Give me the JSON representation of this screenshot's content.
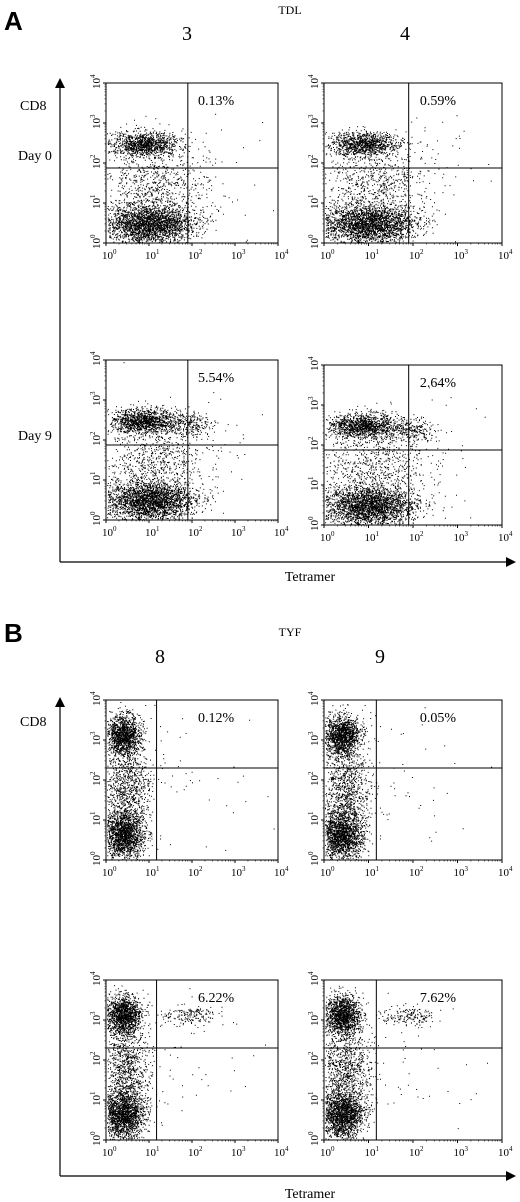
{
  "figure": {
    "panels": [
      {
        "letter": "A",
        "peptide": "TDL",
        "columns": [
          "3",
          "4"
        ],
        "y_axis_label": "CD8",
        "x_axis_label": "Tetramer",
        "row_labels": [
          "Day 0",
          "Day 9"
        ]
      },
      {
        "letter": "B",
        "peptide": "TYF",
        "columns": [
          "8",
          "9"
        ],
        "y_axis_label": "CD8",
        "x_axis_label": "Tetramer",
        "row_labels": [
          "",
          ""
        ]
      }
    ],
    "tick_labels": [
      "10",
      "0",
      "1",
      "2",
      "3",
      "4"
    ]
  },
  "chart_data": [
    {
      "type": "scatter",
      "panel": "A",
      "column": "3",
      "row": "Day 0",
      "xscale": "log",
      "yscale": "log",
      "xlim": [
        1,
        10000
      ],
      "ylim": [
        1,
        10000
      ],
      "quadrant_gate": {
        "x": 80,
        "y": 75
      },
      "tetramer_positive_percent": "0.13%"
    },
    {
      "type": "scatter",
      "panel": "A",
      "column": "4",
      "row": "Day 0",
      "xscale": "log",
      "yscale": "log",
      "xlim": [
        1,
        10000
      ],
      "ylim": [
        1,
        10000
      ],
      "quadrant_gate": {
        "x": 80,
        "y": 75
      },
      "tetramer_positive_percent": "0.59%"
    },
    {
      "type": "scatter",
      "panel": "A",
      "column": "3",
      "row": "Day 9",
      "xscale": "log",
      "yscale": "log",
      "xlim": [
        1,
        10000
      ],
      "ylim": [
        1,
        10000
      ],
      "quadrant_gate": {
        "x": 80,
        "y": 75
      },
      "tetramer_positive_percent": "5.54%"
    },
    {
      "type": "scatter",
      "panel": "A",
      "column": "4",
      "row": "Day 9",
      "xscale": "log",
      "yscale": "log",
      "xlim": [
        1,
        10000
      ],
      "ylim": [
        1,
        10000
      ],
      "quadrant_gate": {
        "x": 80,
        "y": 75
      },
      "tetramer_positive_percent": "2.64%"
    },
    {
      "type": "scatter",
      "panel": "B",
      "column": "8",
      "row": 1,
      "xscale": "log",
      "yscale": "log",
      "xlim": [
        1,
        10000
      ],
      "ylim": [
        1,
        10000
      ],
      "quadrant_gate": {
        "x": 15,
        "y": 200
      },
      "tetramer_positive_percent": "0.12%"
    },
    {
      "type": "scatter",
      "panel": "B",
      "column": "9",
      "row": 1,
      "xscale": "log",
      "yscale": "log",
      "xlim": [
        1,
        10000
      ],
      "ylim": [
        1,
        10000
      ],
      "quadrant_gate": {
        "x": 15,
        "y": 200
      },
      "tetramer_positive_percent": "0.05%"
    },
    {
      "type": "scatter",
      "panel": "B",
      "column": "8",
      "row": 2,
      "xscale": "log",
      "yscale": "log",
      "xlim": [
        1,
        10000
      ],
      "ylim": [
        1,
        10000
      ],
      "quadrant_gate": {
        "x": 15,
        "y": 200
      },
      "tetramer_positive_percent": "6.22%"
    },
    {
      "type": "scatter",
      "panel": "B",
      "column": "9",
      "row": 2,
      "xscale": "log",
      "yscale": "log",
      "xlim": [
        1,
        10000
      ],
      "ylim": [
        1,
        10000
      ],
      "quadrant_gate": {
        "x": 15,
        "y": 200
      },
      "tetramer_positive_percent": "7.62%"
    }
  ]
}
